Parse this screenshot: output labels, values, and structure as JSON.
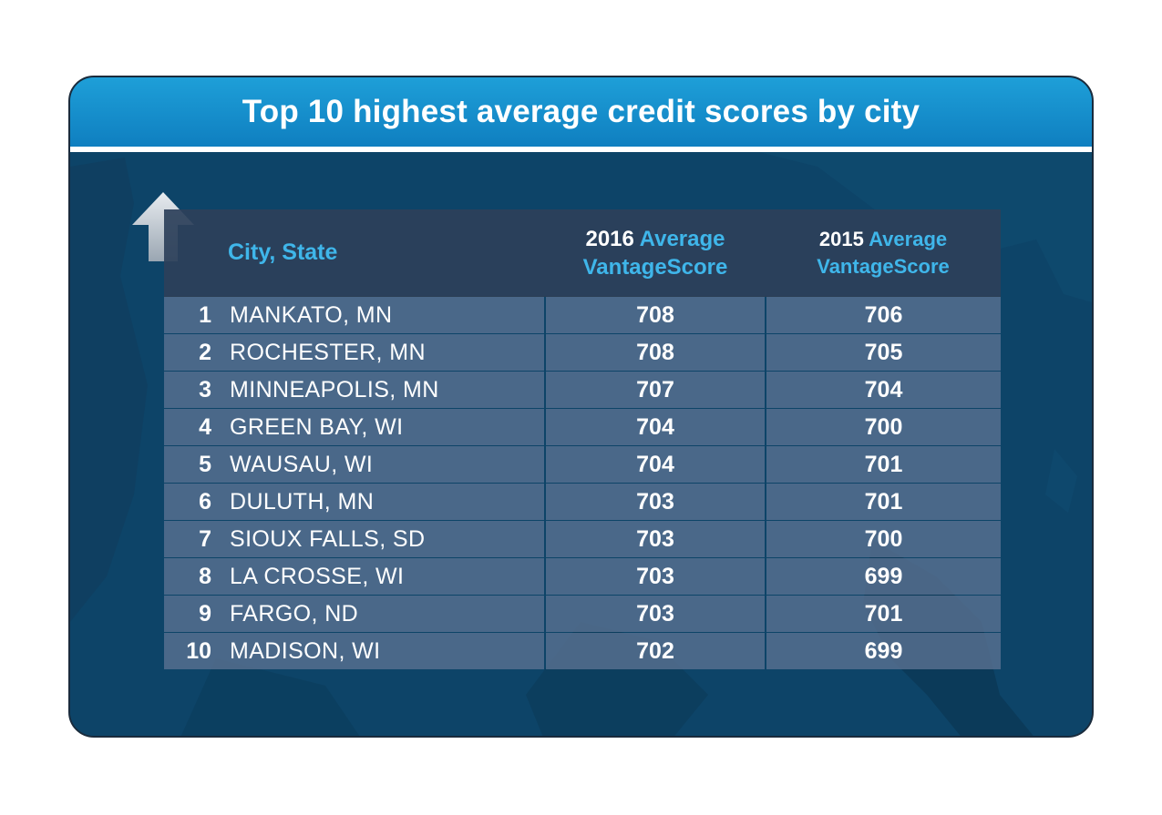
{
  "title": "Top 10 highest average credit scores by city",
  "colors": {
    "title_bar": "#1e9fd8",
    "background": "#0d4468",
    "accent_text": "#3fb6ea",
    "row_fill": "#587090",
    "header_fill": "#2c405a"
  },
  "icons": {
    "rank_arrow": "up-arrow-icon"
  },
  "chart_data": {
    "type": "table",
    "title": "Top 10 highest average credit scores by city",
    "columns": {
      "rank": "",
      "city": "City, State",
      "score_2016": {
        "year": "2016",
        "label_line1": "Average",
        "label_line2": "VantageScore"
      },
      "score_2015": {
        "year": "2015",
        "label_line1": "Average",
        "label_line2": "VantageScore"
      }
    },
    "rows": [
      {
        "rank": "1",
        "city": "MANKATO, MN",
        "score_2016": "708",
        "score_2015": "706"
      },
      {
        "rank": "2",
        "city": "ROCHESTER, MN",
        "score_2016": "708",
        "score_2015": "705"
      },
      {
        "rank": "3",
        "city": "MINNEAPOLIS, MN",
        "score_2016": "707",
        "score_2015": "704"
      },
      {
        "rank": "4",
        "city": "GREEN BAY, WI",
        "score_2016": "704",
        "score_2015": "700"
      },
      {
        "rank": "5",
        "city": "WAUSAU, WI",
        "score_2016": "704",
        "score_2015": "701"
      },
      {
        "rank": "6",
        "city": "DULUTH, MN",
        "score_2016": "703",
        "score_2015": "701"
      },
      {
        "rank": "7",
        "city": "SIOUX FALLS, SD",
        "score_2016": "703",
        "score_2015": "700"
      },
      {
        "rank": "8",
        "city": "LA CROSSE, WI",
        "score_2016": "703",
        "score_2015": "699"
      },
      {
        "rank": "9",
        "city": "FARGO, ND",
        "score_2016": "703",
        "score_2015": "701"
      },
      {
        "rank": "10",
        "city": "MADISON, WI",
        "score_2016": "702",
        "score_2015": "699"
      }
    ]
  }
}
